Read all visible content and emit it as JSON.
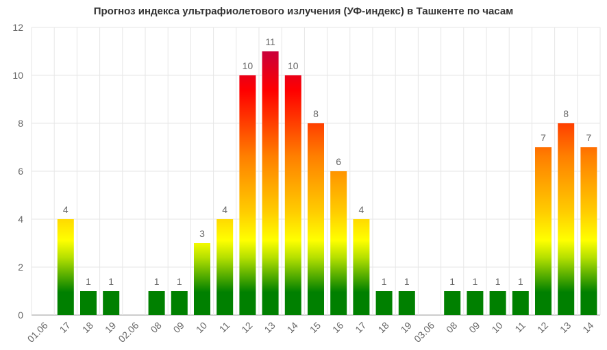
{
  "chart_data": {
    "type": "bar",
    "title": "Прогноз индекса ультрафиолетового излучения (УФ-индекс) в Ташкенте по часам",
    "xlabel": "",
    "ylabel": "",
    "ylim": [
      0,
      12
    ],
    "yticks": [
      0,
      2,
      4,
      6,
      8,
      10,
      12
    ],
    "grid": true,
    "legend": "none",
    "categories": [
      "01.06",
      "17",
      "18",
      "19",
      "02.06",
      "08",
      "09",
      "10",
      "11",
      "12",
      "13",
      "14",
      "15",
      "16",
      "17",
      "18",
      "19",
      "03.06",
      "08",
      "09",
      "10",
      "11",
      "12",
      "13",
      "14"
    ],
    "values": [
      null,
      4,
      1,
      1,
      null,
      1,
      1,
      3,
      4,
      10,
      11,
      10,
      8,
      6,
      4,
      1,
      1,
      null,
      1,
      1,
      1,
      1,
      7,
      8,
      7
    ],
    "colors": {
      "green": "#008000",
      "yellow_green": "#b5e000",
      "yellow": "#ffe600",
      "orange": "#ff8000",
      "red": "#ff0000",
      "crimson": "#c8003c",
      "grid": "#e6e6e6",
      "axis": "#999999"
    }
  }
}
